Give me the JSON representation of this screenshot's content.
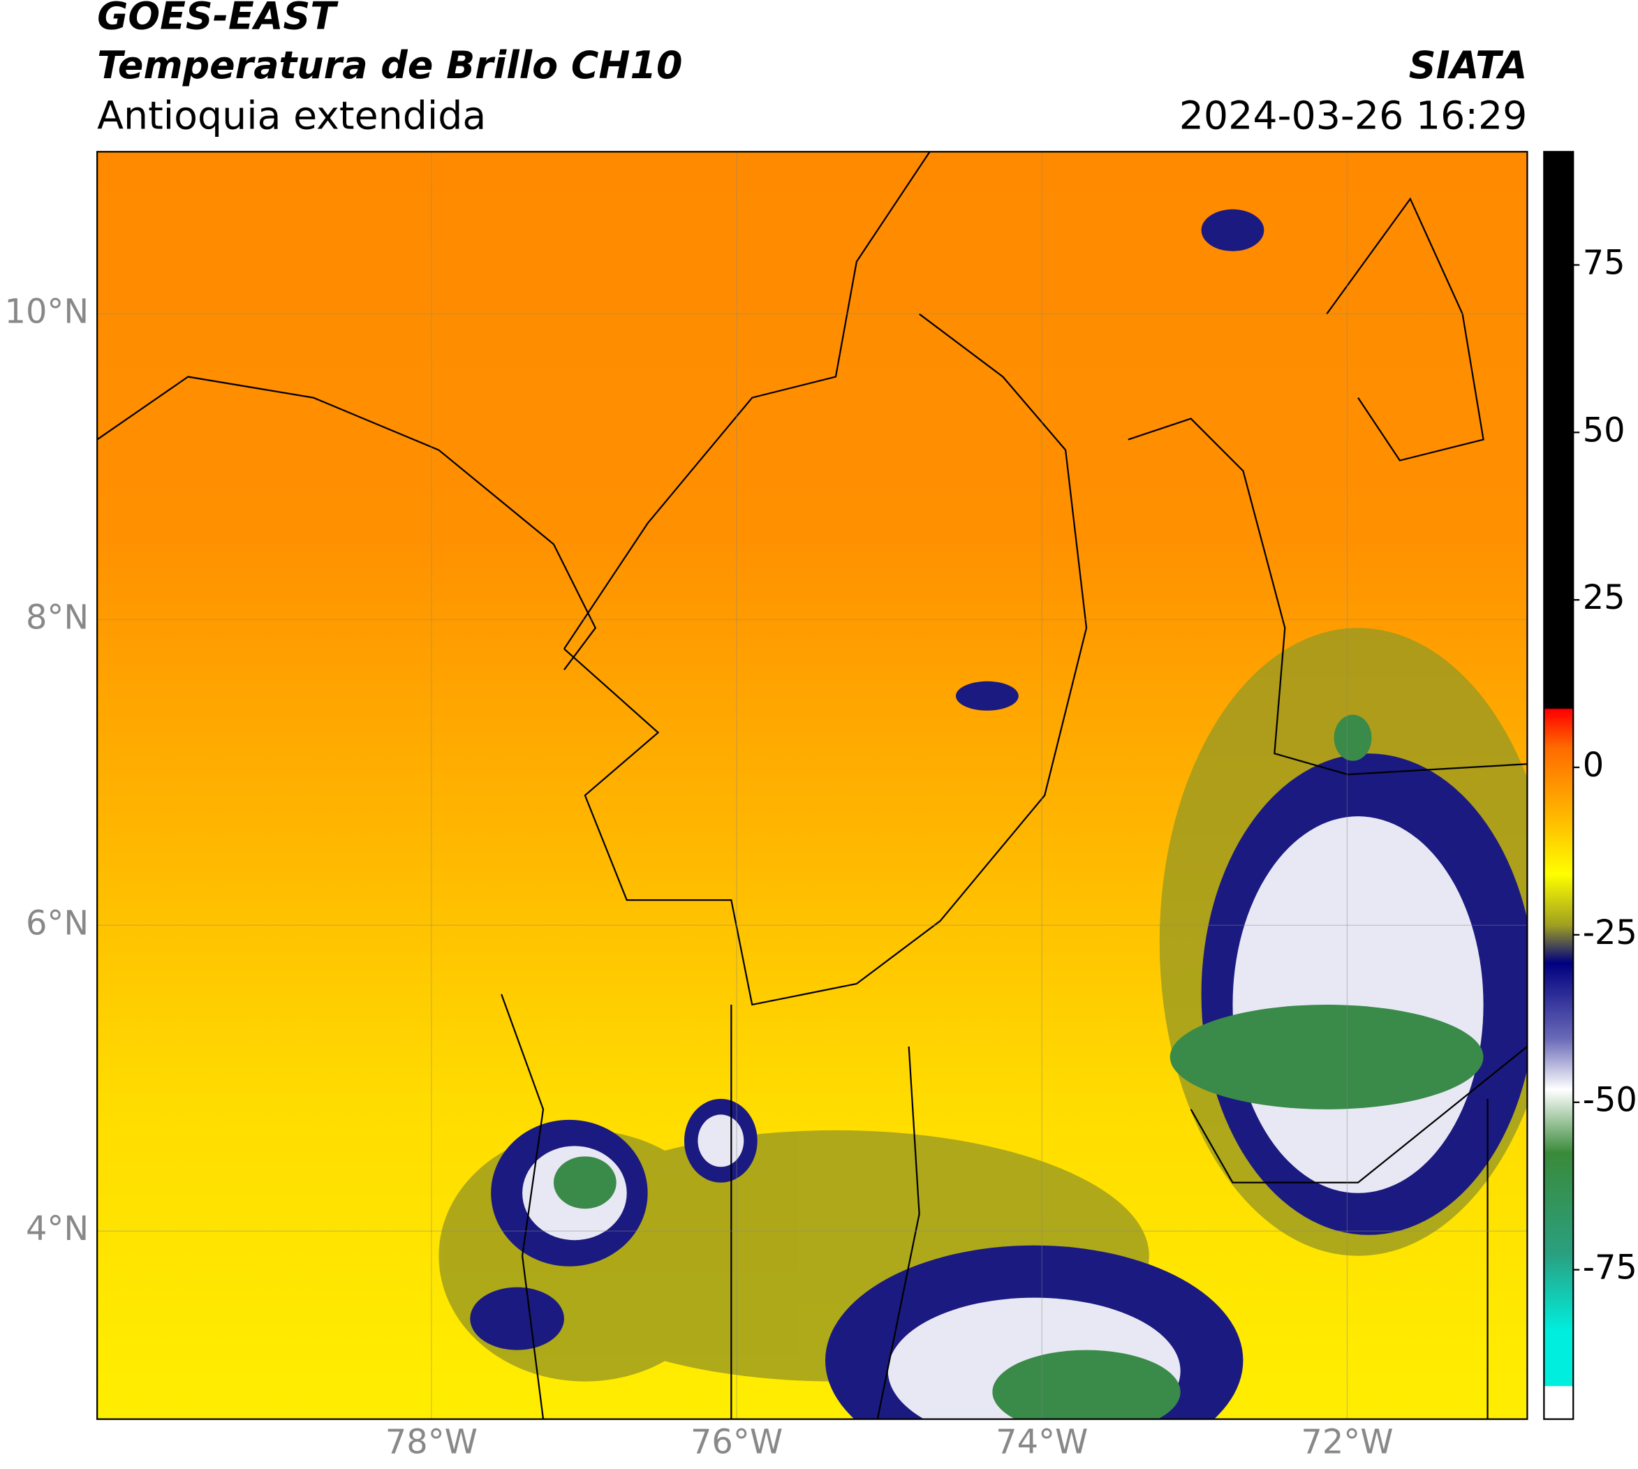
{
  "header": {
    "title": "GOES-EAST",
    "subtitle": "Temperatura de Brillo CH10",
    "region": "Antioquia extendida",
    "source": "SIATA",
    "timestamp": "2024-03-26 16:29"
  },
  "map": {
    "xlim": [
      -80.19,
      -70.82
    ],
    "ylim": [
      2.77,
      11.06
    ],
    "xticks": [
      {
        "value": -78,
        "label": "78°W"
      },
      {
        "value": -76,
        "label": "76°W"
      },
      {
        "value": -74,
        "label": "74°W"
      },
      {
        "value": -72,
        "label": "72°W"
      }
    ],
    "yticks": [
      {
        "value": 4,
        "label": "4°N"
      },
      {
        "value": 6,
        "label": "6°N"
      },
      {
        "value": 8,
        "label": "8°N"
      },
      {
        "value": 10,
        "label": "10°N"
      }
    ],
    "grid": true
  },
  "colorbar": {
    "clim": [
      -97.3,
      91.9
    ],
    "ticks": [
      -75,
      -50,
      -25,
      0,
      25,
      50,
      75
    ]
  }
}
